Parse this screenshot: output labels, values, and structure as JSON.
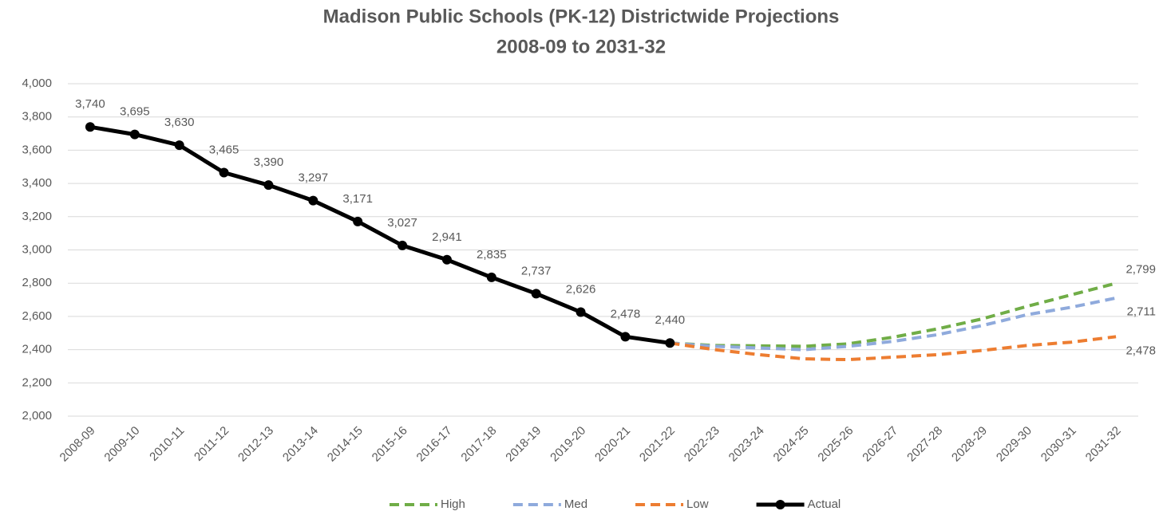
{
  "chart_data": {
    "type": "line",
    "title": "Madison Public Schools (PK-12) Districtwide Projections",
    "subtitle": "2008-09 to 2031-32",
    "categories": [
      "2008-09",
      "2009-10",
      "2010-11",
      "2011-12",
      "2012-13",
      "2013-14",
      "2014-15",
      "2015-16",
      "2016-17",
      "2017-18",
      "2018-19",
      "2019-20",
      "2020-21",
      "2021-22",
      "2022-23",
      "2023-24",
      "2024-25",
      "2025-26",
      "2026-27",
      "2027-28",
      "2028-29",
      "2029-30",
      "2030-31",
      "2031-32"
    ],
    "series": [
      {
        "name": "High",
        "color": "#70ad47",
        "dashed": true,
        "values": [
          null,
          null,
          null,
          null,
          null,
          null,
          null,
          null,
          null,
          null,
          null,
          null,
          null,
          2440,
          2425,
          2423,
          2420,
          2435,
          2475,
          2525,
          2585,
          2660,
          2730,
          2799
        ],
        "value_labels": [
          null,
          null,
          null,
          null,
          null,
          null,
          null,
          null,
          null,
          null,
          null,
          null,
          null,
          null,
          null,
          null,
          null,
          null,
          null,
          null,
          null,
          null,
          null,
          "2,799"
        ]
      },
      {
        "name": "Med",
        "color": "#8faadc",
        "dashed": true,
        "values": [
          null,
          null,
          null,
          null,
          null,
          null,
          null,
          null,
          null,
          null,
          null,
          null,
          null,
          2440,
          2420,
          2410,
          2400,
          2420,
          2450,
          2490,
          2545,
          2610,
          2655,
          2711
        ],
        "value_labels": [
          null,
          null,
          null,
          null,
          null,
          null,
          null,
          null,
          null,
          null,
          null,
          null,
          null,
          null,
          null,
          null,
          null,
          null,
          null,
          null,
          null,
          null,
          null,
          "2,711"
        ]
      },
      {
        "name": "Low",
        "color": "#ed7d31",
        "dashed": true,
        "values": [
          null,
          null,
          null,
          null,
          null,
          null,
          null,
          null,
          null,
          null,
          null,
          null,
          null,
          2440,
          2400,
          2370,
          2345,
          2340,
          2355,
          2370,
          2395,
          2425,
          2445,
          2478
        ],
        "value_labels": [
          null,
          null,
          null,
          null,
          null,
          null,
          null,
          null,
          null,
          null,
          null,
          null,
          null,
          null,
          null,
          null,
          null,
          null,
          null,
          null,
          null,
          null,
          null,
          "2,478"
        ]
      },
      {
        "name": "Actual",
        "color": "#000000",
        "dashed": false,
        "markers": true,
        "values": [
          3740,
          3695,
          3630,
          3465,
          3390,
          3297,
          3171,
          3027,
          2941,
          2835,
          2737,
          2626,
          2478,
          2440,
          null,
          null,
          null,
          null,
          null,
          null,
          null,
          null,
          null,
          null
        ],
        "value_labels": [
          "3,740",
          "3,695",
          "3,630",
          "3,465",
          "3,390",
          "3,297",
          "3,171",
          "3,027",
          "2,941",
          "2,835",
          "2,737",
          "2,626",
          "2,478",
          "2,440",
          null,
          null,
          null,
          null,
          null,
          null,
          null,
          null,
          null,
          null
        ]
      }
    ],
    "ylim": [
      2000,
      4000
    ],
    "yticks": [
      {
        "value": 2000,
        "label": "2,000"
      },
      {
        "value": 2200,
        "label": "2,200"
      },
      {
        "value": 2400,
        "label": "2,400"
      },
      {
        "value": 2600,
        "label": "2,600"
      },
      {
        "value": 2800,
        "label": "2,800"
      },
      {
        "value": 3000,
        "label": "3,000"
      },
      {
        "value": 3200,
        "label": "3,200"
      },
      {
        "value": 3400,
        "label": "3,400"
      },
      {
        "value": 3600,
        "label": "3,600"
      },
      {
        "value": 3800,
        "label": "3,800"
      },
      {
        "value": 4000,
        "label": "4,000"
      }
    ],
    "grid": true,
    "legend": "bottom"
  }
}
